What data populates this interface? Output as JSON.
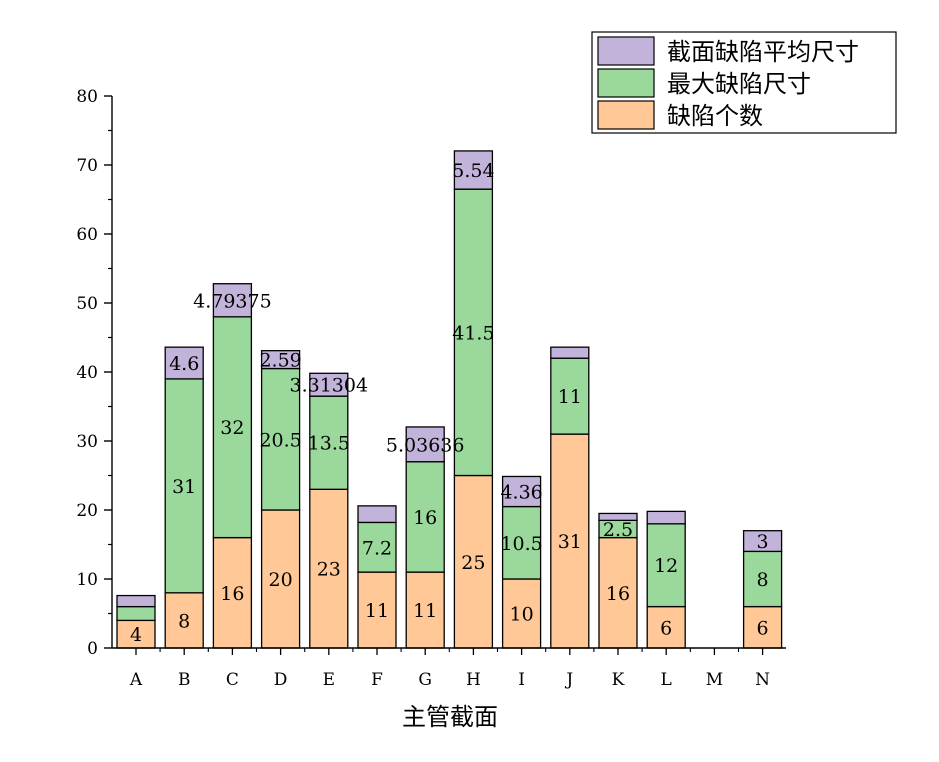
{
  "chart_data": {
    "type": "bar",
    "stacked": true,
    "xlabel": "主管截面",
    "ylabel": "",
    "ylim": [
      0,
      80
    ],
    "yticks": [
      0,
      10,
      20,
      30,
      40,
      50,
      60,
      70,
      80
    ],
    "categories": [
      "A",
      "B",
      "C",
      "D",
      "E",
      "F",
      "G",
      "H",
      "I",
      "J",
      "K",
      "L",
      "M",
      "N"
    ],
    "series": [
      {
        "name": "缺陷个数",
        "color": "#FFC896",
        "values": [
          4,
          8,
          16,
          20,
          23,
          11,
          11,
          25,
          10,
          31,
          16,
          6,
          0,
          6
        ],
        "labels": [
          "4",
          "8",
          "16",
          "20",
          "23",
          "11",
          "11",
          "25",
          "10",
          "31",
          "16",
          "6",
          "",
          "6"
        ]
      },
      {
        "name": "最大缺陷尺寸",
        "color": "#9BD89B",
        "values": [
          2,
          31,
          32,
          20.5,
          13.5,
          7.2,
          16,
          41.5,
          10.5,
          11,
          2.5,
          12,
          0,
          8
        ],
        "labels": [
          "",
          "31",
          "32",
          "20.5",
          "13.5",
          "7.2",
          "16",
          "41.5",
          "10.5",
          "11",
          "2.5",
          "12",
          "",
          "8"
        ]
      },
      {
        "name": "截面缺陷平均尺寸",
        "color": "#C2B3DA",
        "values": [
          1.6,
          4.6,
          4.79375,
          2.59,
          3.31304,
          2.4,
          5.03636,
          5.54,
          4.36,
          1.6,
          1,
          1.8,
          0,
          3
        ],
        "labels": [
          "",
          "4.6",
          "4.79375",
          "2.59",
          "3.31304",
          "",
          "5.03636",
          "5.54",
          "4.36",
          "",
          "",
          "",
          "",
          "3"
        ]
      }
    ],
    "legend": {
      "position": "top-right",
      "entries": [
        "截面缺陷平均尺寸",
        "最大缺陷尺寸",
        "缺陷个数"
      ]
    },
    "grid": false
  }
}
